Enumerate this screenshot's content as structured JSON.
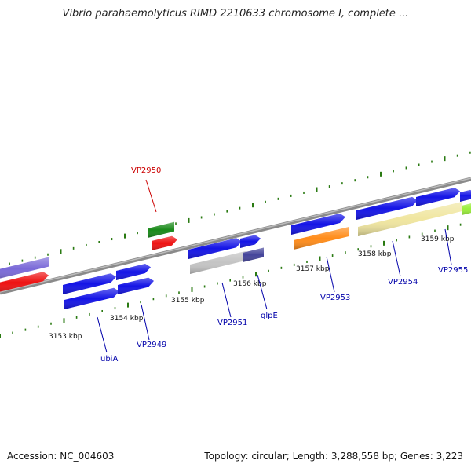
{
  "title": "Vibrio parahaemolyticus RIMD 2210633 chromosome I, complete ...",
  "footer": {
    "accession_label": "Accession: NC_004603",
    "summary": "Topology: circular; Length: 3,288,558 bp; Genes: 3,223"
  },
  "ticks": [
    "3153 kbp",
    "3154 kbp",
    "3155 kbp",
    "3156 kbp",
    "3157 kbp",
    "3158 kbp",
    "3159 kbp"
  ],
  "gene_labels": [
    {
      "id": "vp2950",
      "text": "VP2950",
      "color": "#cc0000"
    },
    {
      "id": "ubia",
      "text": "ubiA",
      "color": "#0000aa"
    },
    {
      "id": "vp2949",
      "text": "VP2949",
      "color": "#0000aa"
    },
    {
      "id": "vp2951",
      "text": "VP2951",
      "color": "#0000aa"
    },
    {
      "id": "glpe",
      "text": "glpE",
      "color": "#0000aa"
    },
    {
      "id": "vp2953",
      "text": "VP2953",
      "color": "#0000aa"
    },
    {
      "id": "vp2954",
      "text": "VP2954",
      "color": "#0000aa"
    },
    {
      "id": "vp2955",
      "text": "VP2955",
      "color": "#0000aa"
    }
  ],
  "colors": {
    "backbone": "#888888",
    "tick": "#2a7a12",
    "blue_gene": "#1414e6",
    "red_gene": "#ee1111",
    "green_gene": "#1a8a1a",
    "purple_gene": "#7a6ad8",
    "gray_gene": "#c4c4c4",
    "dark_purple_gene": "#44449a",
    "orange_gene": "#ff8c1a",
    "khaki_gene": "#f0e6a0",
    "lime_gene": "#9aee3a"
  }
}
